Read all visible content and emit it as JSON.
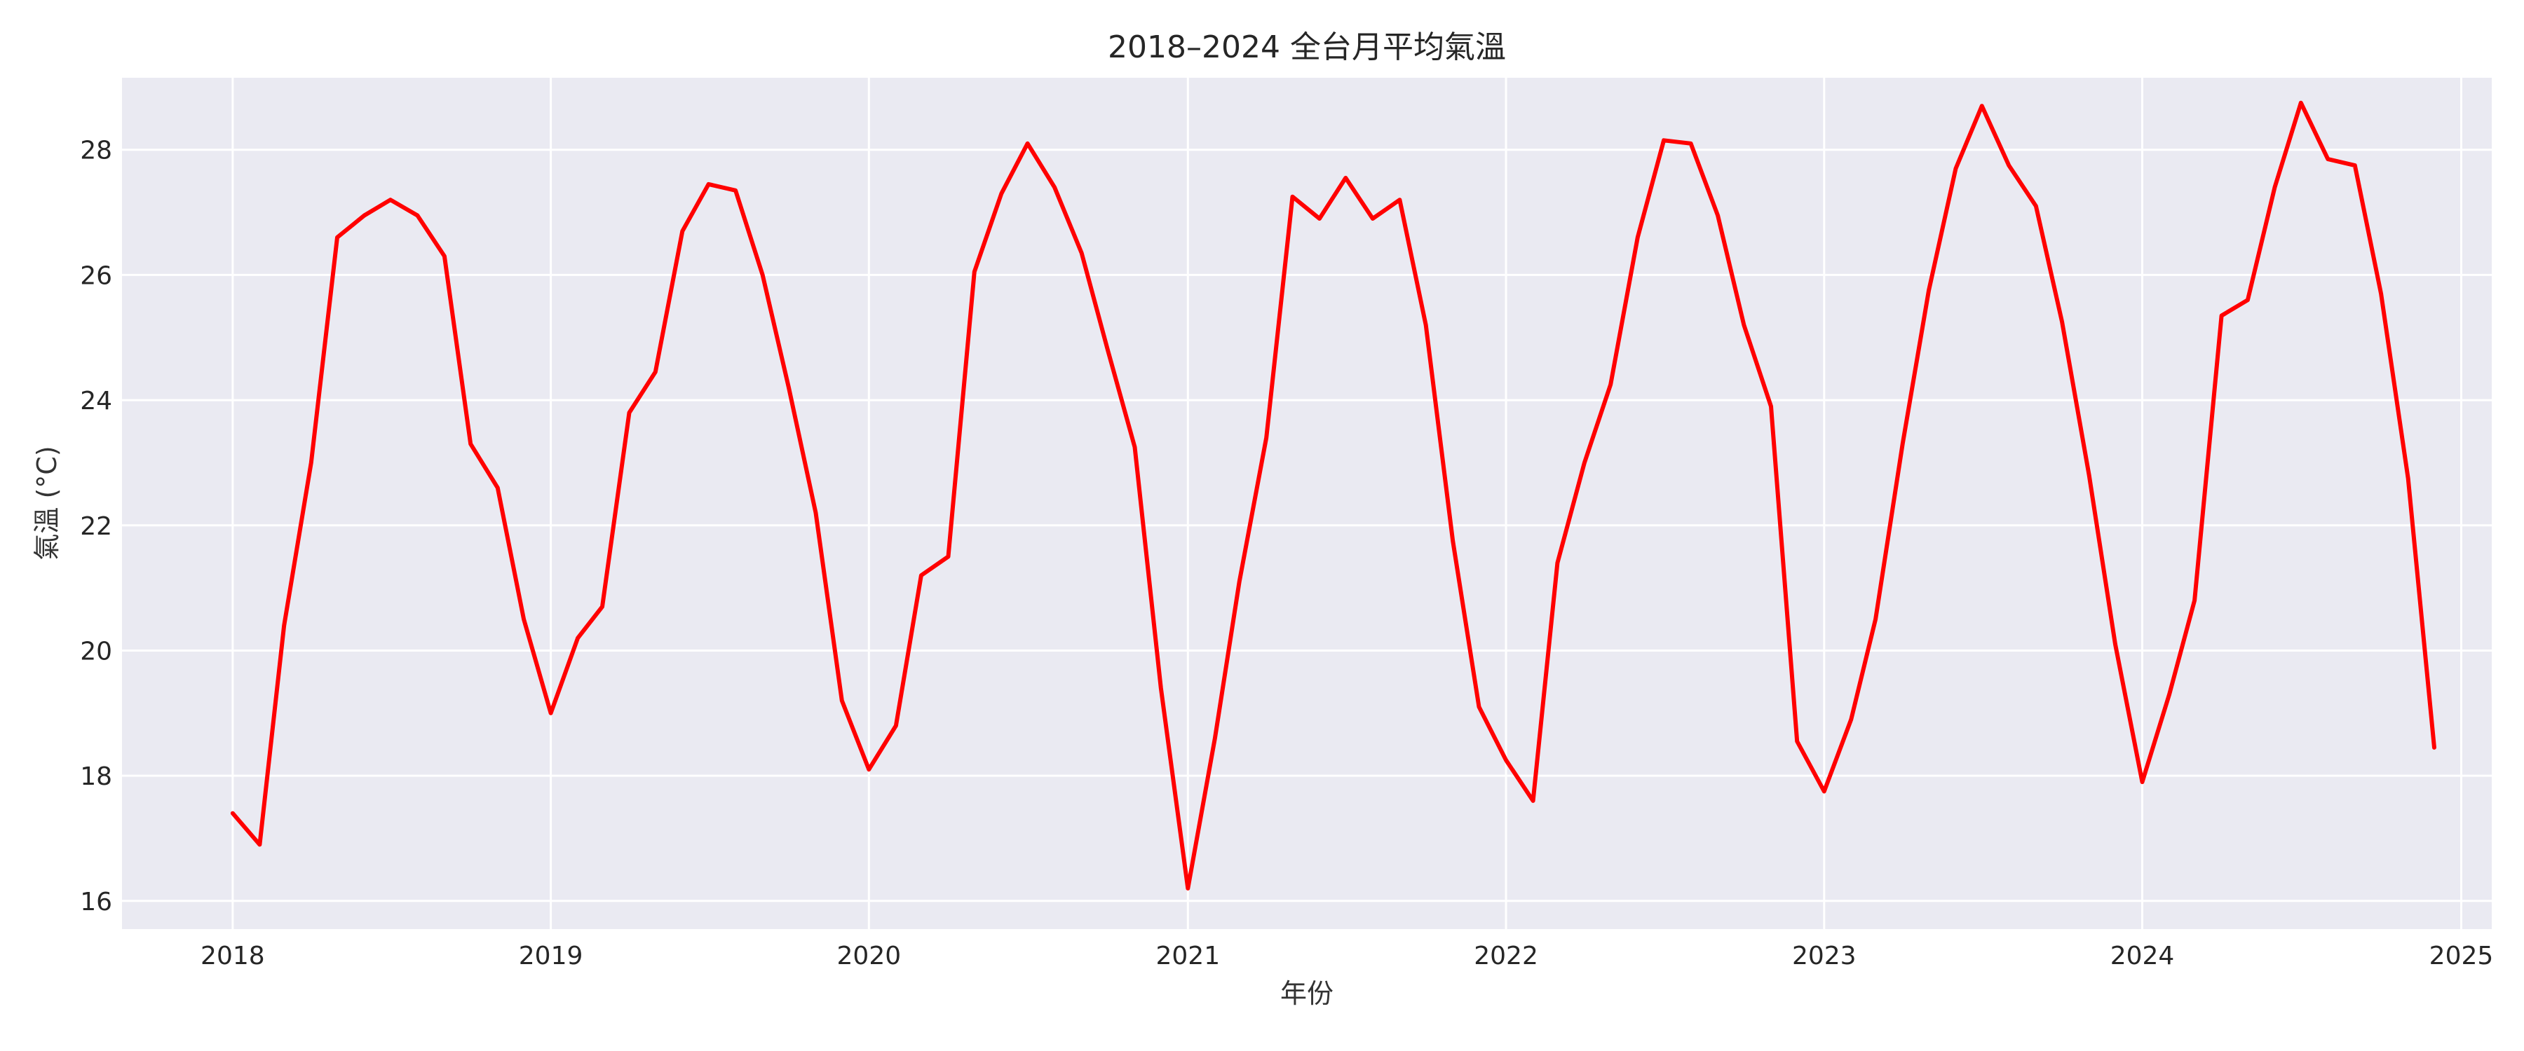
{
  "chart_data": {
    "type": "line",
    "title": "2018–2024 全台月平均氣溫",
    "xlabel": "年份",
    "ylabel": "氣溫 (°C)",
    "xlim": [
      "2017-08-27",
      "2025-02-05"
    ],
    "ylim": [
      15.55,
      29.15
    ],
    "x_ticks": [
      "2018",
      "2019",
      "2020",
      "2021",
      "2022",
      "2023",
      "2024",
      "2025"
    ],
    "y_ticks": [
      16,
      18,
      20,
      22,
      24,
      26,
      28
    ],
    "grid": true,
    "background": "#eaeaf2",
    "series": [
      {
        "color": "#ff0000",
        "x": [
          "2018-01",
          "2018-02",
          "2018-03",
          "2018-04",
          "2018-05",
          "2018-06",
          "2018-07",
          "2018-08",
          "2018-09",
          "2018-10",
          "2018-11",
          "2018-12",
          "2019-01",
          "2019-02",
          "2019-03",
          "2019-04",
          "2019-05",
          "2019-06",
          "2019-07",
          "2019-08",
          "2019-09",
          "2019-10",
          "2019-11",
          "2019-12",
          "2020-01",
          "2020-02",
          "2020-03",
          "2020-04",
          "2020-05",
          "2020-06",
          "2020-07",
          "2020-08",
          "2020-09",
          "2020-10",
          "2020-11",
          "2020-12",
          "2021-01",
          "2021-02",
          "2021-03",
          "2021-04",
          "2021-05",
          "2021-06",
          "2021-07",
          "2021-08",
          "2021-09",
          "2021-10",
          "2021-11",
          "2021-12",
          "2022-01",
          "2022-02",
          "2022-03",
          "2022-04",
          "2022-05",
          "2022-06",
          "2022-07",
          "2022-08",
          "2022-09",
          "2022-10",
          "2022-11",
          "2022-12",
          "2023-01",
          "2023-02",
          "2023-03",
          "2023-04",
          "2023-05",
          "2023-06",
          "2023-07",
          "2023-08",
          "2023-09",
          "2023-10",
          "2023-11",
          "2023-12",
          "2024-01",
          "2024-02",
          "2024-03",
          "2024-04",
          "2024-05",
          "2024-06",
          "2024-07",
          "2024-08",
          "2024-09",
          "2024-10",
          "2024-11",
          "2024-12"
        ],
        "values": [
          17.4,
          16.9,
          20.4,
          23.0,
          26.6,
          26.95,
          27.2,
          26.95,
          26.3,
          23.3,
          22.6,
          20.5,
          19.0,
          20.2,
          20.7,
          23.8,
          24.45,
          26.7,
          27.45,
          27.35,
          26.0,
          24.2,
          22.2,
          19.2,
          18.1,
          18.8,
          21.2,
          21.5,
          26.05,
          27.3,
          28.1,
          27.4,
          26.35,
          24.8,
          23.25,
          19.4,
          16.2,
          18.6,
          21.1,
          23.4,
          27.25,
          26.9,
          27.55,
          26.9,
          27.2,
          25.2,
          21.75,
          19.1,
          18.25,
          17.6,
          21.4,
          23.0,
          24.25,
          26.6,
          28.15,
          28.1,
          26.95,
          25.2,
          23.9,
          18.55,
          17.75,
          18.9,
          20.5,
          23.3,
          25.75,
          27.7,
          28.7,
          27.75,
          27.1,
          25.25,
          22.8,
          20.1,
          17.9,
          19.3,
          20.8,
          25.35,
          25.6,
          27.4,
          28.75,
          27.85,
          27.75,
          25.7,
          22.75,
          18.45
        ]
      }
    ]
  }
}
